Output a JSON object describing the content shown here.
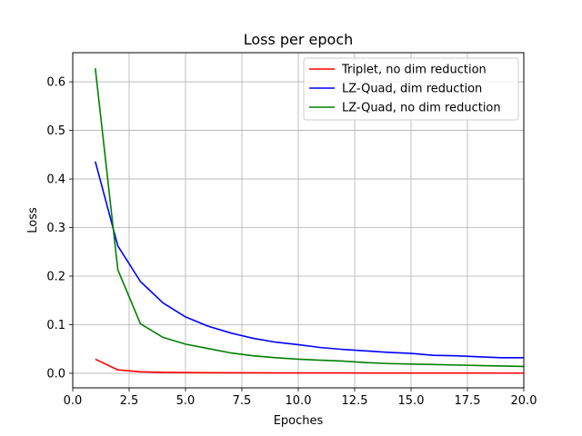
{
  "chart_data": {
    "type": "line",
    "title": "Loss per epoch",
    "xlabel": "Epoches",
    "ylabel": "Loss",
    "xlim": [
      0,
      20
    ],
    "ylim": [
      -0.03,
      0.66
    ],
    "xticks": [
      0,
      2.5,
      5,
      7.5,
      10,
      12.5,
      15,
      17.5,
      20
    ],
    "xtick_labels": [
      "0.0",
      "2.5",
      "5.0",
      "7.5",
      "10.0",
      "12.5",
      "15.0",
      "17.5",
      "20.0"
    ],
    "yticks": [
      0,
      0.1,
      0.2,
      0.3,
      0.4,
      0.5,
      0.6
    ],
    "ytick_labels": [
      "0.0",
      "0.1",
      "0.2",
      "0.3",
      "0.4",
      "0.5",
      "0.6"
    ],
    "grid": true,
    "legend_position": "top-right",
    "x": [
      1,
      2,
      3,
      4,
      5,
      6,
      7,
      8,
      9,
      10,
      11,
      12,
      13,
      14,
      15,
      16,
      17,
      18,
      19,
      20
    ],
    "series": [
      {
        "name": "Triplet, no dim reduction",
        "color": "#ff0000",
        "values": [
          0.029,
          0.007,
          0.003,
          0.002,
          0.0015,
          0.0012,
          0.001,
          0.001,
          0.0008,
          0.0008,
          0.0007,
          0.0007,
          0.0006,
          0.0006,
          0.0005,
          0.0005,
          0.0005,
          0.0005,
          0.0004,
          0.0004
        ]
      },
      {
        "name": "LZ-Quad, dim reduction",
        "color": "#0000ff",
        "values": [
          0.436,
          0.262,
          0.189,
          0.145,
          0.116,
          0.097,
          0.083,
          0.072,
          0.064,
          0.059,
          0.053,
          0.049,
          0.046,
          0.043,
          0.041,
          0.037,
          0.036,
          0.034,
          0.032,
          0.032
        ]
      },
      {
        "name": "LZ-Quad, no dim reduction",
        "color": "#008000",
        "values": [
          0.628,
          0.213,
          0.102,
          0.074,
          0.06,
          0.051,
          0.042,
          0.036,
          0.032,
          0.029,
          0.027,
          0.025,
          0.022,
          0.02,
          0.019,
          0.018,
          0.017,
          0.016,
          0.015,
          0.014
        ]
      }
    ]
  }
}
